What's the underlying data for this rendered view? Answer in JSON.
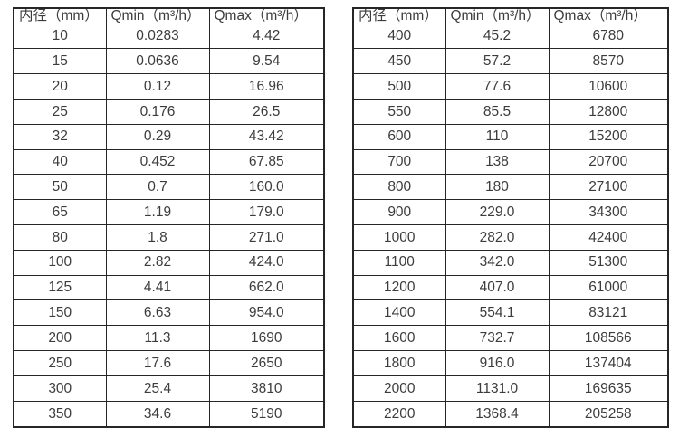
{
  "page": {
    "background": "#ffffff",
    "border_color": "#262626",
    "text_color": "#3c3c3c"
  },
  "tables": [
    {
      "name": "flow-spec-table-small-diameters",
      "headers": [
        "内径（mm）",
        "Qmin（m³/h）",
        "Qmax（m³/h）"
      ],
      "rows": [
        [
          "10",
          "0.0283",
          "4.42"
        ],
        [
          "15",
          "0.0636",
          "9.54"
        ],
        [
          "20",
          "0.12",
          "16.96"
        ],
        [
          "25",
          "0.176",
          "26.5"
        ],
        [
          "32",
          "0.29",
          "43.42"
        ],
        [
          "40",
          "0.452",
          "67.85"
        ],
        [
          "50",
          "0.7",
          "160.0"
        ],
        [
          "65",
          "1.19",
          "179.0"
        ],
        [
          "80",
          "1.8",
          "271.0"
        ],
        [
          "100",
          "2.82",
          "424.0"
        ],
        [
          "125",
          "4.41",
          "662.0"
        ],
        [
          "150",
          "6.63",
          "954.0"
        ],
        [
          "200",
          "11.3",
          "1690"
        ],
        [
          "250",
          "17.6",
          "2650"
        ],
        [
          "300",
          "25.4",
          "3810"
        ],
        [
          "350",
          "34.6",
          "5190"
        ]
      ]
    },
    {
      "name": "flow-spec-table-large-diameters",
      "headers": [
        "内径（mm）",
        "Qmin（m³/h）",
        "Qmax（m³/h）"
      ],
      "rows": [
        [
          "400",
          "45.2",
          "6780"
        ],
        [
          "450",
          "57.2",
          "8570"
        ],
        [
          "500",
          "77.6",
          "10600"
        ],
        [
          "550",
          "85.5",
          "12800"
        ],
        [
          "600",
          "110",
          "15200"
        ],
        [
          "700",
          "138",
          "20700"
        ],
        [
          "800",
          "180",
          "27100"
        ],
        [
          "900",
          "229.0",
          "34300"
        ],
        [
          "1000",
          "282.0",
          "42400"
        ],
        [
          "1100",
          "342.0",
          "51300"
        ],
        [
          "1200",
          "407.0",
          "61000"
        ],
        [
          "1400",
          "554.1",
          "83121"
        ],
        [
          "1600",
          "732.7",
          "108566"
        ],
        [
          "1800",
          "916.0",
          "137404"
        ],
        [
          "2000",
          "1131.0",
          "169635"
        ],
        [
          "2200",
          "1368.4",
          "205258"
        ]
      ]
    }
  ]
}
